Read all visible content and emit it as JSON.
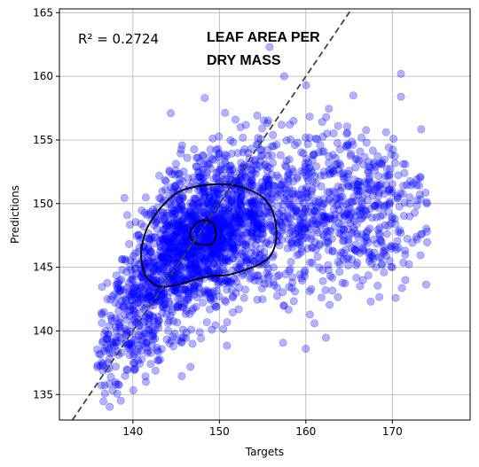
{
  "chart_data": {
    "type": "scatter",
    "title_lines": [
      "LEAF AREA PER",
      "DRY MASS"
    ],
    "annotation": "R² = 0.2724",
    "xlabel": "Targets",
    "ylabel": "Predictions",
    "xlim": [
      131.5,
      179
    ],
    "ylim": [
      133,
      165.3
    ],
    "xticks": [
      140,
      150,
      160,
      170
    ],
    "yticks": [
      135,
      140,
      145,
      150,
      155,
      160,
      165
    ],
    "grid": true,
    "point_color": "#0000ff",
    "reference_line": {
      "label": "y = x",
      "style": "dashed",
      "color": "#444444"
    },
    "density_contours": [
      {
        "level": "outer",
        "points": [
          [
            141,
            146.5
          ],
          [
            141.6,
            148
          ],
          [
            143,
            149.5
          ],
          [
            145,
            150.8
          ],
          [
            147,
            151.3
          ],
          [
            149,
            151.5
          ],
          [
            151,
            151.5
          ],
          [
            153,
            151.2
          ],
          [
            155,
            150.5
          ],
          [
            156.2,
            149.3
          ],
          [
            156.6,
            147.5
          ],
          [
            156,
            146
          ],
          [
            154.5,
            145.2
          ],
          [
            153,
            144.8
          ],
          [
            151,
            144.4
          ],
          [
            149,
            144.3
          ],
          [
            147,
            144
          ],
          [
            145,
            143.6
          ],
          [
            143,
            143.5
          ],
          [
            141.5,
            144.3
          ],
          [
            141,
            145.5
          ]
        ]
      },
      {
        "level": "inner",
        "points": [
          [
            146.6,
            147.6
          ],
          [
            147.2,
            148.4
          ],
          [
            148.3,
            148.7
          ],
          [
            149.3,
            148.4
          ],
          [
            149.6,
            147.5
          ],
          [
            149,
            146.8
          ],
          [
            147.8,
            146.8
          ],
          [
            147,
            147
          ]
        ]
      }
    ],
    "sample_count_approx": 3500,
    "sample_points": [
      [
        137,
        137
      ],
      [
        138,
        141
      ],
      [
        140,
        144
      ],
      [
        142,
        146
      ],
      [
        144,
        147
      ],
      [
        146,
        148
      ],
      [
        148,
        148.5
      ],
      [
        150,
        149
      ],
      [
        152,
        149
      ],
      [
        154,
        149.5
      ],
      [
        156,
        150
      ],
      [
        158,
        150
      ],
      [
        160,
        150.5
      ],
      [
        162,
        150
      ],
      [
        164,
        151
      ],
      [
        166,
        151
      ],
      [
        168,
        151
      ],
      [
        170,
        151
      ],
      [
        172,
        150
      ],
      [
        174,
        150
      ],
      [
        141.5,
        136
      ],
      [
        148.3,
        158.3
      ],
      [
        155.8,
        162.3
      ],
      [
        157.5,
        160
      ],
      [
        165.5,
        158.5
      ],
      [
        171,
        160.2
      ],
      [
        171,
        158.4
      ],
      [
        167.5,
        142.3
      ],
      [
        161,
        140.6
      ],
      [
        160,
        138.6
      ],
      [
        172,
        149
      ],
      [
        174,
        147.8
      ],
      [
        170,
        145
      ],
      [
        171.5,
        146
      ]
    ]
  }
}
